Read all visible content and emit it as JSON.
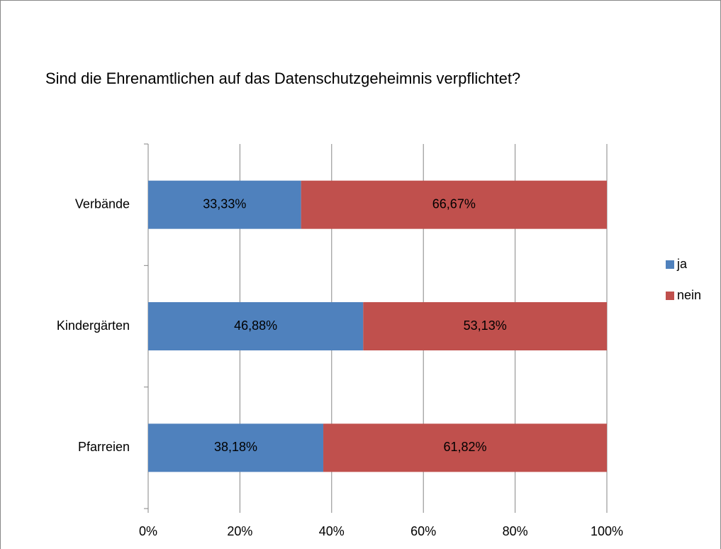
{
  "chart_data": {
    "type": "stacked_barh",
    "title": "Sind die Ehrenamtlichen auf das Datenschutzgeheimnis  verpflichtet?",
    "categories": [
      "Verbände",
      "Kindergärten",
      "Pfarreien"
    ],
    "series": [
      {
        "name": "ja",
        "color": "#4f81bd",
        "values": [
          33.33,
          46.88,
          38.18
        ],
        "value_labels": [
          "33,33%",
          "46,88%",
          "38,18%"
        ]
      },
      {
        "name": "nein",
        "color": "#c0504d",
        "values": [
          66.67,
          53.13,
          61.82
        ],
        "value_labels": [
          "66,67%",
          "53,13%",
          "61,82%"
        ]
      }
    ],
    "xlim": [
      0,
      100
    ],
    "xticks": [
      {
        "value": 0,
        "label": "0%"
      },
      {
        "value": 20,
        "label": "20%"
      },
      {
        "value": 40,
        "label": "40%"
      },
      {
        "value": 60,
        "label": "60%"
      },
      {
        "value": 80,
        "label": "80%"
      },
      {
        "value": 100,
        "label": "100%"
      }
    ],
    "grid": true,
    "legend": "right"
  }
}
